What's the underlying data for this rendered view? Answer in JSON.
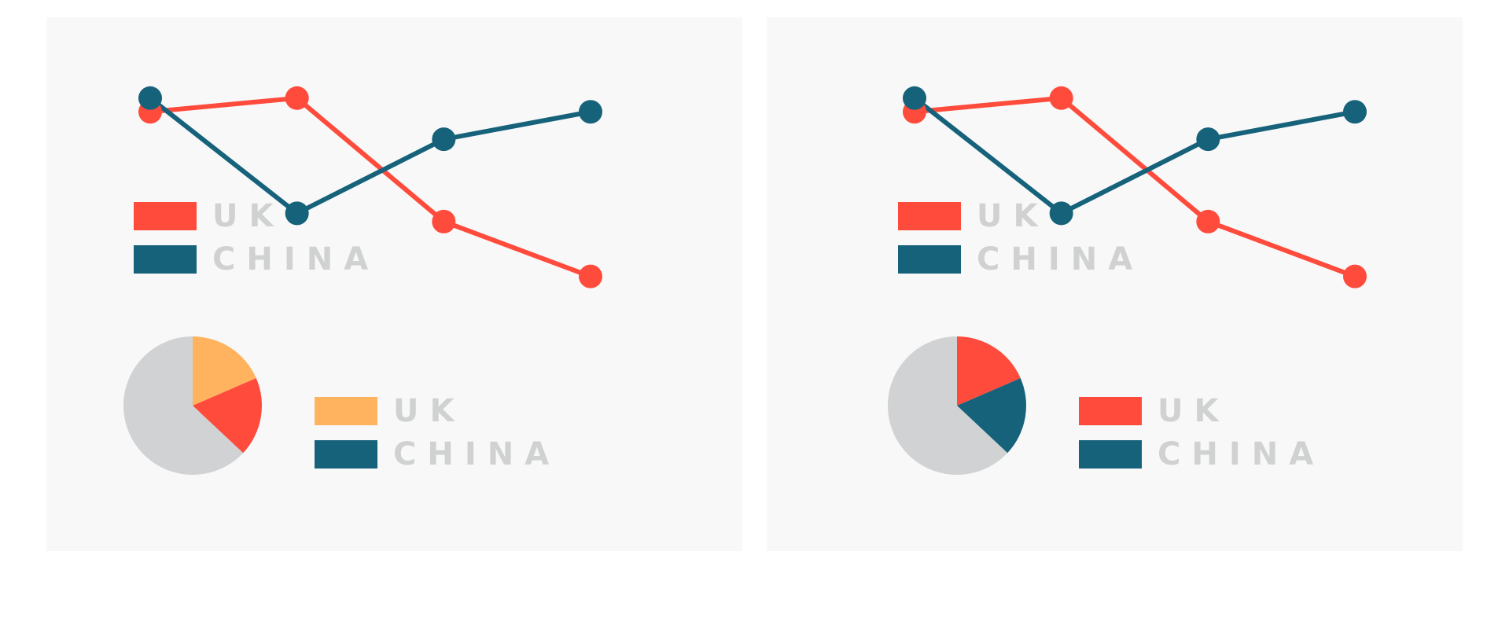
{
  "colors": {
    "uk": "#ff4b3c",
    "china": "#17627b",
    "orange": "#ffb35e",
    "grey": "#d1d2d3",
    "panel": "#f8f8f8"
  },
  "chart_data": [
    {
      "type": "line",
      "x": [
        1,
        2,
        3,
        4
      ],
      "ylim": [
        0,
        100
      ],
      "series": [
        {
          "name": "UK",
          "values": [
            75,
            80,
            35,
            15
          ]
        },
        {
          "name": "CHINA",
          "values": [
            80,
            38,
            65,
            75
          ]
        }
      ]
    },
    {
      "type": "pie",
      "labels": [
        "UK",
        "CHINA",
        ""
      ],
      "values": [
        18.5,
        18.5,
        63
      ],
      "colors": [
        "#ffb35e",
        "#ff4b3c",
        "#d1d2d3"
      ]
    },
    {
      "type": "line",
      "x": [
        1,
        2,
        3,
        4
      ],
      "ylim": [
        0,
        100
      ],
      "series": [
        {
          "name": "UK",
          "values": [
            75,
            80,
            35,
            15
          ]
        },
        {
          "name": "CHINA",
          "values": [
            80,
            38,
            65,
            75
          ]
        }
      ]
    },
    {
      "type": "pie",
      "labels": [
        "UK",
        "CHINA",
        ""
      ],
      "values": [
        18.5,
        18.5,
        63
      ],
      "colors": [
        "#ff4b3c",
        "#17627b",
        "#d1d2d3"
      ]
    }
  ],
  "panels": [
    {
      "line_legend": [
        {
          "label": "UK",
          "color": "#ff4b3c"
        },
        {
          "label": "CHINA",
          "color": "#17627b"
        }
      ],
      "pie_legend": [
        {
          "label": "UK",
          "color": "#ffb35e"
        },
        {
          "label": "CHINA",
          "color": "#17627b"
        }
      ]
    },
    {
      "line_legend": [
        {
          "label": "UK",
          "color": "#ff4b3c"
        },
        {
          "label": "CHINA",
          "color": "#17627b"
        }
      ],
      "pie_legend": [
        {
          "label": "UK",
          "color": "#ff4b3c"
        },
        {
          "label": "CHINA",
          "color": "#17627b"
        }
      ]
    }
  ]
}
